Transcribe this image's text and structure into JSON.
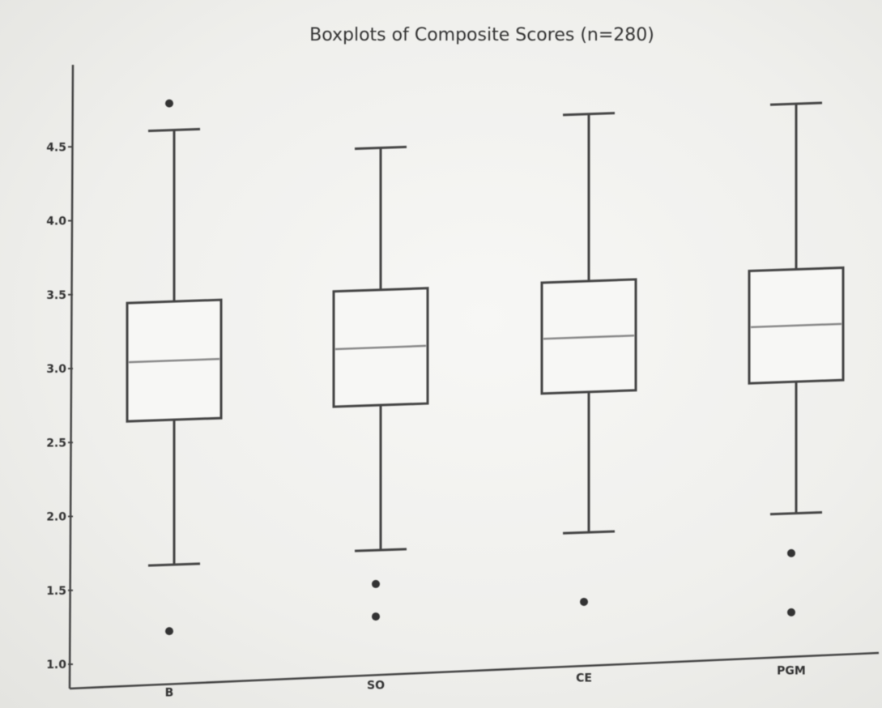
{
  "chart_data": {
    "type": "boxplot",
    "title": "Boxplots of Composite Scores (n=280)",
    "xlabel": "",
    "ylabel": "",
    "ylim": [
      1.0,
      5.0
    ],
    "yticks": [
      "1.0",
      "1.5",
      "2.0",
      "2.5",
      "3.0",
      "3.5",
      "4.0",
      "4.5"
    ],
    "grid": false,
    "legend": "none",
    "colors": {
      "box_edge": "#444444",
      "median": "#888888",
      "axis": "#444444"
    },
    "categories": [
      "B",
      "SO",
      "CE",
      "PGM"
    ],
    "boxes": [
      {
        "name": "B",
        "q1": 2.63,
        "median": 3.03,
        "q3": 3.43,
        "whisker_low": 1.65,
        "whisker_high": 4.59,
        "outliers": [
          1.2,
          4.77
        ]
      },
      {
        "name": "SO",
        "q1": 2.68,
        "median": 3.07,
        "q3": 3.46,
        "whisker_low": 1.7,
        "whisker_high": 4.42,
        "outliers": [
          1.47,
          1.25
        ]
      },
      {
        "name": "CE",
        "q1": 2.72,
        "median": 3.09,
        "q3": 3.47,
        "whisker_low": 1.77,
        "whisker_high": 4.6,
        "outliers": [
          1.3
        ]
      },
      {
        "name": "PGM",
        "q1": 2.74,
        "median": 3.12,
        "q3": 3.5,
        "whisker_low": 1.85,
        "whisker_high": 4.62,
        "outliers": [
          1.58,
          1.18
        ]
      }
    ]
  }
}
